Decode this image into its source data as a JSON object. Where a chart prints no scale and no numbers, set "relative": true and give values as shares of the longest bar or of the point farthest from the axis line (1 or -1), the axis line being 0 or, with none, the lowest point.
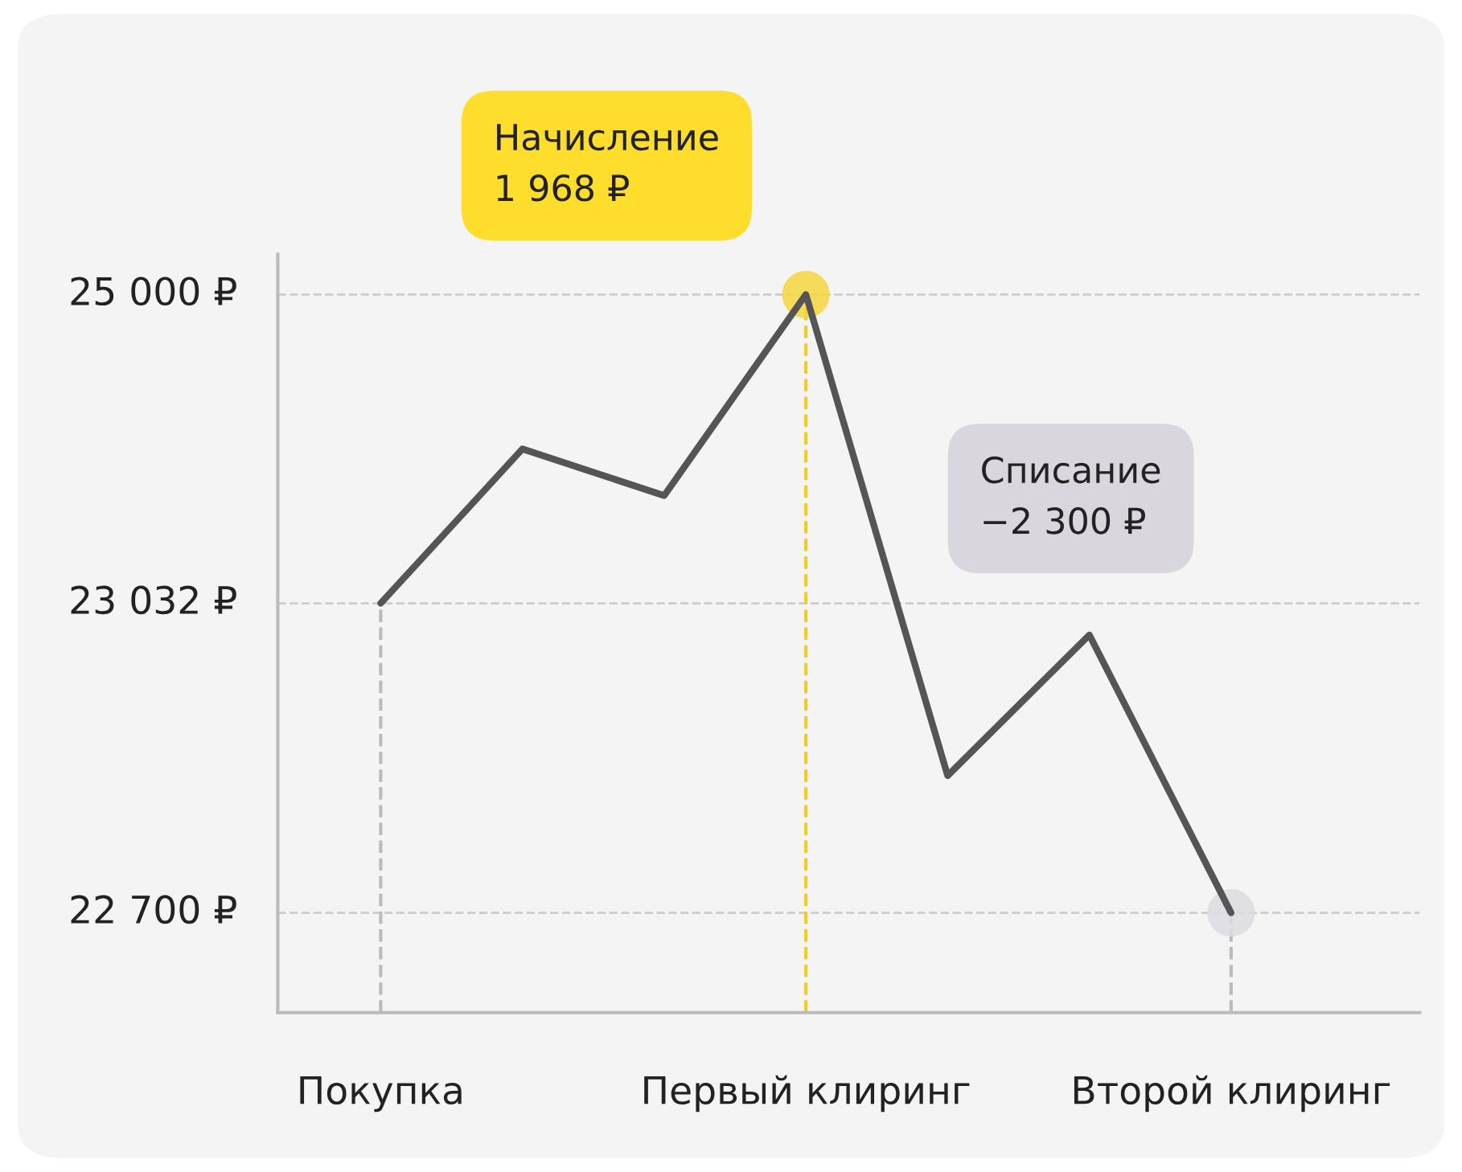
{
  "chart_data": {
    "type": "line",
    "relative": true,
    "categories": [
      "Покупка",
      null,
      null,
      "Первый клиринг",
      null,
      null,
      "Второй клиринг"
    ],
    "series": [
      {
        "color": "#555555",
        "values": [
          0.57,
          0.785,
          0.72,
          1,
          0.33,
          0.526,
          0.139
        ]
      }
    ],
    "ref_lines": [
      {
        "axis": "y",
        "value": 1,
        "label": "25 000 ₽",
        "color": "#cccccc",
        "line_style": "dashed"
      },
      {
        "axis": "y",
        "value": 0.57,
        "label": "23 032 ₽",
        "color": "#cccccc",
        "line_style": "dashed"
      },
      {
        "axis": "y",
        "value": 0.139,
        "label": "22 700 ₽",
        "color": "#cccccc",
        "line_style": "dashed"
      },
      {
        "axis": "x",
        "value": "Покупка",
        "color": "#bbbbbb",
        "line_style": "dashed"
      },
      {
        "axis": "x",
        "value": "Первый клиринг",
        "color": "#f2cc1e",
        "line_style": "dashed"
      },
      {
        "axis": "x",
        "value": "Второй клиринг",
        "color": "#bbbbbb",
        "line_style": "dashed"
      }
    ],
    "annotations": [
      "Начисление\n1 968 ₽",
      "Списание\n−2 300 ₽"
    ],
    "grid": false,
    "legend": false,
    "marker": "none",
    "line_style": "solid"
  }
}
